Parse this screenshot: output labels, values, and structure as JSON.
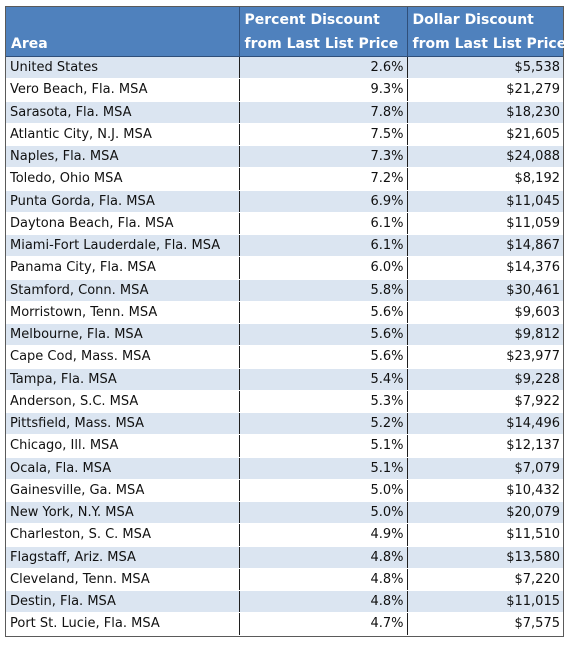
{
  "table": {
    "headers": {
      "area": [
        "",
        "Area"
      ],
      "percent": [
        "Percent Discount",
        "from Last List Price"
      ],
      "dollar": [
        "Dollar Discount",
        "from Last List Price"
      ]
    },
    "rows": [
      {
        "area": "United States",
        "percent": "2.6%",
        "dollar": "$5,538"
      },
      {
        "area": "Vero Beach, Fla. MSA",
        "percent": "9.3%",
        "dollar": "$21,279"
      },
      {
        "area": "Sarasota, Fla. MSA",
        "percent": "7.8%",
        "dollar": "$18,230"
      },
      {
        "area": "Atlantic City, N.J. MSA",
        "percent": "7.5%",
        "dollar": "$21,605"
      },
      {
        "area": "Naples, Fla. MSA",
        "percent": "7.3%",
        "dollar": "$24,088"
      },
      {
        "area": "Toledo, Ohio MSA",
        "percent": "7.2%",
        "dollar": "$8,192"
      },
      {
        "area": "Punta Gorda, Fla. MSA",
        "percent": "6.9%",
        "dollar": "$11,045"
      },
      {
        "area": "Daytona Beach, Fla. MSA",
        "percent": "6.1%",
        "dollar": "$11,059"
      },
      {
        "area": "Miami-Fort Lauderdale, Fla. MSA",
        "percent": "6.1%",
        "dollar": "$14,867"
      },
      {
        "area": "Panama City, Fla. MSA",
        "percent": "6.0%",
        "dollar": "$14,376"
      },
      {
        "area": "Stamford, Conn. MSA",
        "percent": "5.8%",
        "dollar": "$30,461"
      },
      {
        "area": "Morristown, Tenn. MSA",
        "percent": "5.6%",
        "dollar": "$9,603"
      },
      {
        "area": "Melbourne, Fla. MSA",
        "percent": "5.6%",
        "dollar": "$9,812"
      },
      {
        "area": "Cape Cod, Mass. MSA",
        "percent": "5.6%",
        "dollar": "$23,977"
      },
      {
        "area": "Tampa, Fla. MSA",
        "percent": "5.4%",
        "dollar": "$9,228"
      },
      {
        "area": "Anderson, S.C. MSA",
        "percent": "5.3%",
        "dollar": "$7,922"
      },
      {
        "area": "Pittsfield, Mass. MSA",
        "percent": "5.2%",
        "dollar": "$14,496"
      },
      {
        "area": "Chicago, Ill. MSA",
        "percent": "5.1%",
        "dollar": "$12,137"
      },
      {
        "area": "Ocala, Fla. MSA",
        "percent": "5.1%",
        "dollar": "$7,079"
      },
      {
        "area": "Gainesville, Ga. MSA",
        "percent": "5.0%",
        "dollar": "$10,432"
      },
      {
        "area": "New York, N.Y. MSA",
        "percent": "5.0%",
        "dollar": "$20,079"
      },
      {
        "area": "Charleston, S. C. MSA",
        "percent": "4.9%",
        "dollar": "$11,510"
      },
      {
        "area": "Flagstaff, Ariz. MSA",
        "percent": "4.8%",
        "dollar": "$13,580"
      },
      {
        "area": "Cleveland, Tenn. MSA",
        "percent": "4.8%",
        "dollar": "$7,220"
      },
      {
        "area": "Destin, Fla. MSA",
        "percent": "4.8%",
        "dollar": "$11,015"
      },
      {
        "area": "Port St. Lucie, Fla. MSA",
        "percent": "4.7%",
        "dollar": "$7,575"
      }
    ]
  }
}
